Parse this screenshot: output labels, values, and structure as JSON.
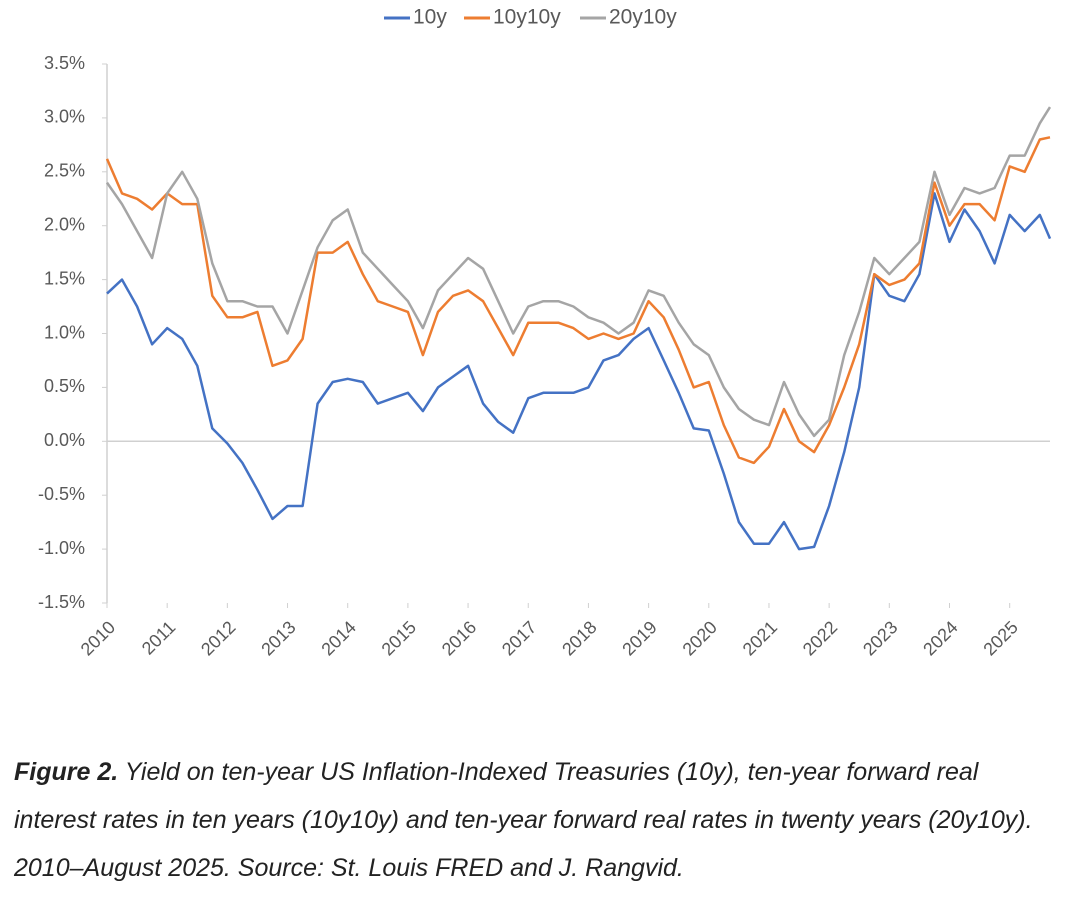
{
  "chart_data": {
    "type": "line",
    "x": [
      2010,
      2010.25,
      2010.5,
      2010.75,
      2011,
      2011.25,
      2011.5,
      2011.75,
      2012,
      2012.25,
      2012.5,
      2012.75,
      2013,
      2013.25,
      2013.5,
      2013.75,
      2014,
      2014.25,
      2014.5,
      2014.75,
      2015,
      2015.25,
      2015.5,
      2015.75,
      2016,
      2016.25,
      2016.5,
      2016.75,
      2017,
      2017.25,
      2017.5,
      2017.75,
      2018,
      2018.25,
      2018.5,
      2018.75,
      2019,
      2019.25,
      2019.5,
      2019.75,
      2020,
      2020.25,
      2020.5,
      2020.75,
      2021,
      2021.25,
      2021.5,
      2021.75,
      2022,
      2022.25,
      2022.5,
      2022.75,
      2023,
      2023.25,
      2023.5,
      2023.75,
      2024,
      2024.25,
      2024.5,
      2024.75,
      2025,
      2025.25,
      2025.5,
      2025.67
    ],
    "series": [
      {
        "name": "10y",
        "color": "#4472c4",
        "values": [
          1.37,
          1.5,
          1.25,
          0.9,
          1.05,
          0.95,
          0.7,
          0.12,
          -0.02,
          -0.2,
          -0.45,
          -0.72,
          -0.6,
          -0.6,
          0.35,
          0.55,
          0.58,
          0.55,
          0.35,
          0.4,
          0.45,
          0.28,
          0.5,
          0.6,
          0.7,
          0.35,
          0.18,
          0.08,
          0.4,
          0.45,
          0.45,
          0.45,
          0.5,
          0.75,
          0.8,
          0.95,
          1.05,
          0.75,
          0.45,
          0.12,
          0.1,
          -0.3,
          -0.75,
          -0.95,
          -0.95,
          -0.75,
          -1.0,
          -0.98,
          -0.6,
          -0.1,
          0.5,
          1.55,
          1.35,
          1.3,
          1.55,
          2.3,
          1.85,
          2.15,
          1.95,
          1.65,
          2.1,
          1.95,
          2.1,
          1.88
        ]
      },
      {
        "name": "10y10y",
        "color": "#ed7d31",
        "values": [
          2.62,
          2.3,
          2.25,
          2.15,
          2.3,
          2.2,
          2.2,
          1.35,
          1.15,
          1.15,
          1.2,
          0.7,
          0.75,
          0.95,
          1.75,
          1.75,
          1.85,
          1.55,
          1.3,
          1.25,
          1.2,
          0.8,
          1.2,
          1.35,
          1.4,
          1.3,
          1.05,
          0.8,
          1.1,
          1.1,
          1.1,
          1.05,
          0.95,
          1.0,
          0.95,
          1.0,
          1.3,
          1.15,
          0.85,
          0.5,
          0.55,
          0.15,
          -0.15,
          -0.2,
          -0.05,
          0.3,
          0.0,
          -0.1,
          0.15,
          0.5,
          0.9,
          1.55,
          1.45,
          1.5,
          1.65,
          2.4,
          2.0,
          2.2,
          2.2,
          2.05,
          2.55,
          2.5,
          2.8,
          2.82
        ]
      },
      {
        "name": "20y10y",
        "color": "#a5a5a5",
        "values": [
          2.4,
          2.2,
          1.95,
          1.7,
          2.3,
          2.5,
          2.25,
          1.65,
          1.3,
          1.3,
          1.25,
          1.25,
          1.0,
          1.4,
          1.8,
          2.05,
          2.15,
          1.75,
          1.6,
          1.45,
          1.3,
          1.05,
          1.4,
          1.55,
          1.7,
          1.6,
          1.3,
          1.0,
          1.25,
          1.3,
          1.3,
          1.25,
          1.15,
          1.1,
          1.0,
          1.1,
          1.4,
          1.35,
          1.1,
          0.9,
          0.8,
          0.5,
          0.3,
          0.2,
          0.15,
          0.55,
          0.25,
          0.05,
          0.2,
          0.8,
          1.2,
          1.7,
          1.55,
          1.7,
          1.85,
          2.5,
          2.1,
          2.35,
          2.3,
          2.35,
          2.65,
          2.65,
          2.95,
          3.1
        ]
      }
    ],
    "xlim": [
      2010,
      2025.67
    ],
    "xticks": [
      2010,
      2011,
      2012,
      2013,
      2014,
      2015,
      2016,
      2017,
      2018,
      2019,
      2020,
      2021,
      2022,
      2023,
      2024,
      2025
    ],
    "ylim": [
      -1.5,
      3.5
    ],
    "yticks": [
      {
        "value": -1.5,
        "label": "-1.5%"
      },
      {
        "value": -1.0,
        "label": "-1.0%"
      },
      {
        "value": -0.5,
        "label": "-0.5%"
      },
      {
        "value": 0,
        "label": "0.0%"
      },
      {
        "value": 0.5,
        "label": "0.5%"
      },
      {
        "value": 1.0,
        "label": "1.0%"
      },
      {
        "value": 1.5,
        "label": "1.5%"
      },
      {
        "value": 2.0,
        "label": "2.0%"
      },
      {
        "value": 2.5,
        "label": "2.5%"
      },
      {
        "value": 3.0,
        "label": "3.0%"
      },
      {
        "value": 3.5,
        "label": "3.5%"
      }
    ],
    "grid": false,
    "legend": "top",
    "caption": {
      "label": "Figure 2.",
      "text": "Yield on ten-year US Inflation-Indexed Treasuries (10y), ten-year forward real interest rates in ten years (10y10y) and ten-year forward real rates in twenty years (20y10y). 2010–August 2025. Source: St. Louis FRED and J. Rangvid."
    }
  }
}
